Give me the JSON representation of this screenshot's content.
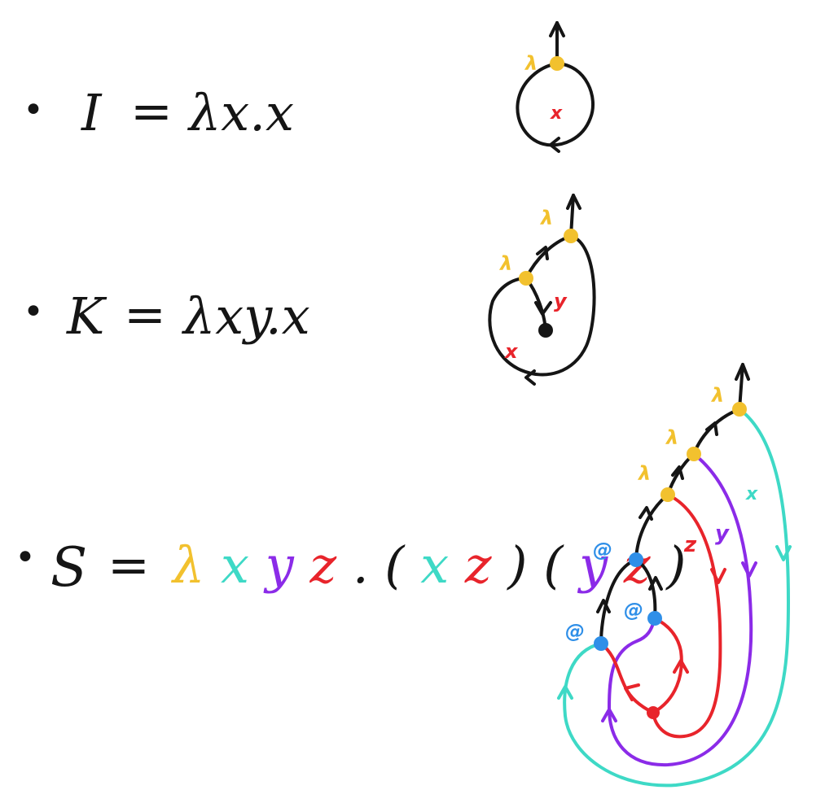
{
  "colors": {
    "ink": "#151515",
    "lambda": "#f2c12e",
    "x": "#3ed9c6",
    "y": "#8b2be8",
    "z": "#e8242b",
    "app": "#2f8fe8"
  },
  "formulas": {
    "I": {
      "bullet": "•",
      "lhs": "I",
      "eq": "=",
      "rhs": "λx.x"
    },
    "K": {
      "bullet": "•",
      "lhs": "K",
      "eq": "=",
      "rhs": "λxy.x"
    },
    "S": {
      "bullet": "•",
      "lhs": "S",
      "eq": "=",
      "lam": "λ",
      "x1": "x",
      "y1": "y",
      "z1": "z",
      "dot": ".",
      "lp1": "(",
      "x2": "x",
      "z2": "z",
      "rp1": ")",
      "lp2": "(",
      "y2": "y",
      "z3": "z",
      "rp2": ")"
    }
  },
  "diagrams": {
    "I": {
      "lambda_label": "λ",
      "var_label": "x"
    },
    "K": {
      "lambda_label_1": "λ",
      "lambda_label_2": "λ",
      "var_x_label": "x",
      "var_y_label": "y"
    },
    "S": {
      "lambda_label_1": "λ",
      "lambda_label_2": "λ",
      "lambda_label_3": "λ",
      "app_label_1": "@",
      "app_label_2": "@",
      "app_label_3": "@",
      "x_label": "x",
      "y_label": "y",
      "z_label": "z"
    }
  }
}
